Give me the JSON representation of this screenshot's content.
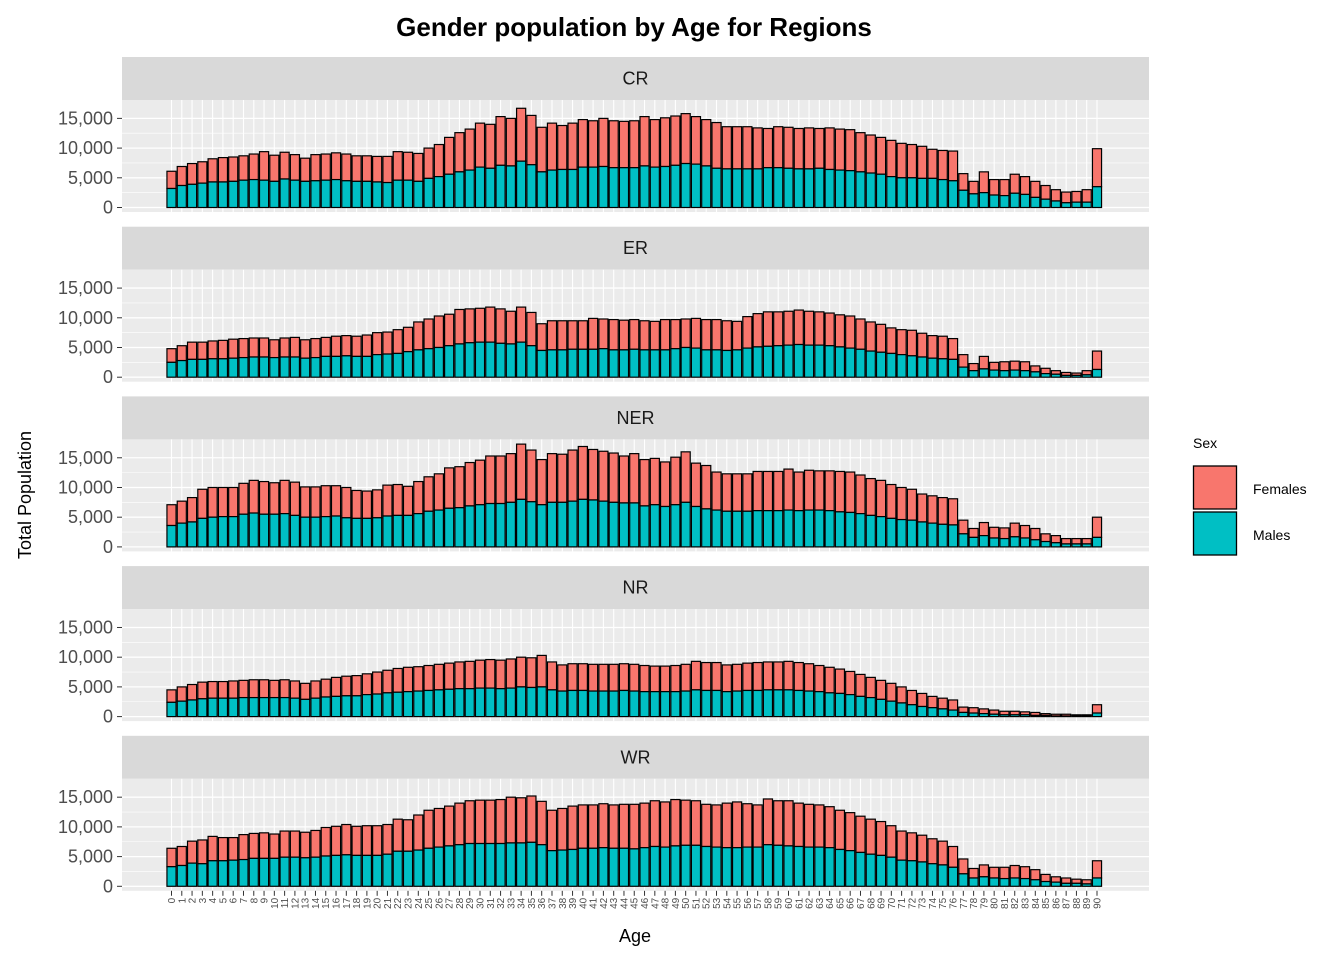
{
  "chart_data": {
    "type": "bar",
    "stacked": true,
    "title": "Gender population by Age for Regions",
    "xlabel": "Age",
    "ylabel": "Total Population",
    "ylim": [
      0,
      17000
    ],
    "yticks": [
      0,
      5000,
      10000,
      15000
    ],
    "ytick_labels": [
      "0",
      "5,000",
      "10,000",
      "15,000"
    ],
    "grid": true,
    "legend": {
      "title": "Sex",
      "placement": "right",
      "entries": [
        {
          "name": "Females",
          "color": "#F8766D"
        },
        {
          "name": "Males",
          "color": "#00BFC4"
        }
      ]
    },
    "categories": [
      "0",
      "1",
      "2",
      "3",
      "4",
      "5",
      "6",
      "7",
      "8",
      "9",
      "10",
      "11",
      "12",
      "13",
      "14",
      "15",
      "16",
      "17",
      "18",
      "19",
      "20",
      "21",
      "22",
      "23",
      "24",
      "25",
      "26",
      "27",
      "28",
      "29",
      "30",
      "31",
      "32",
      "33",
      "34",
      "35",
      "36",
      "37",
      "38",
      "39",
      "40",
      "41",
      "42",
      "43",
      "44",
      "45",
      "46",
      "47",
      "48",
      "49",
      "50",
      "51",
      "52",
      "53",
      "54",
      "55",
      "56",
      "57",
      "58",
      "59",
      "60",
      "61",
      "62",
      "63",
      "64",
      "65",
      "66",
      "67",
      "68",
      "69",
      "70",
      "71",
      "72",
      "73",
      "74",
      "75",
      "76",
      "77",
      "78",
      "79",
      "80",
      "81",
      "82",
      "83",
      "84",
      "85",
      "86",
      "87",
      "88",
      "89",
      "90"
    ],
    "facets": [
      {
        "region": "CR",
        "totals": [
          6100,
          6900,
          7400,
          7700,
          8200,
          8400,
          8500,
          8700,
          9000,
          9400,
          8800,
          9300,
          8900,
          8300,
          8900,
          9000,
          9200,
          9000,
          8700,
          8700,
          8600,
          8600,
          9400,
          9300,
          9100,
          10000,
          10600,
          11800,
          12600,
          13200,
          14200,
          14000,
          15300,
          15000,
          16700,
          15500,
          13500,
          14200,
          13800,
          14200,
          14800,
          14600,
          15000,
          14600,
          14500,
          14600,
          15300,
          14800,
          15100,
          15400,
          15800,
          15300,
          14800,
          14300,
          13600,
          13600,
          13600,
          13400,
          13300,
          13600,
          13500,
          13300,
          13400,
          13300,
          13400,
          13200,
          13100,
          12600,
          12200,
          11800,
          11300,
          10800,
          10600,
          10300,
          9800,
          9600,
          9500,
          5700,
          4400,
          6000,
          4700,
          4700,
          5600,
          5200,
          4400,
          3700,
          3000,
          2600,
          2700,
          3000,
          9900
        ],
        "males": [
          3200,
          3700,
          3900,
          4100,
          4300,
          4300,
          4400,
          4600,
          4700,
          4600,
          4400,
          4800,
          4600,
          4400,
          4500,
          4600,
          4700,
          4500,
          4400,
          4400,
          4300,
          4200,
          4600,
          4600,
          4400,
          4900,
          5200,
          5600,
          6000,
          6300,
          6800,
          6600,
          7100,
          7000,
          7800,
          7200,
          6000,
          6300,
          6400,
          6400,
          6800,
          6800,
          6900,
          6700,
          6700,
          6700,
          7000,
          6800,
          6900,
          7100,
          7400,
          7300,
          7000,
          6600,
          6500,
          6500,
          6500,
          6500,
          6700,
          6700,
          6600,
          6500,
          6500,
          6600,
          6400,
          6300,
          6200,
          6000,
          5800,
          5600,
          5200,
          5000,
          5000,
          4900,
          4900,
          4700,
          4500,
          2900,
          2300,
          2500,
          2100,
          2000,
          2400,
          2200,
          1700,
          1400,
          1100,
          800,
          900,
          900,
          3500
        ]
      },
      {
        "region": "ER",
        "totals": [
          4800,
          5300,
          5900,
          5900,
          6100,
          6200,
          6400,
          6500,
          6600,
          6600,
          6300,
          6600,
          6700,
          6300,
          6500,
          6700,
          6900,
          7000,
          6900,
          7100,
          7500,
          7600,
          8000,
          8400,
          9300,
          9800,
          10300,
          10600,
          11400,
          11500,
          11600,
          11800,
          11500,
          11100,
          11800,
          10900,
          9000,
          9500,
          9500,
          9500,
          9500,
          9900,
          9800,
          9700,
          9600,
          9700,
          9500,
          9400,
          9700,
          9700,
          9800,
          9900,
          9700,
          9700,
          9500,
          9400,
          10200,
          10700,
          11000,
          11000,
          11100,
          11300,
          11100,
          11000,
          10800,
          10500,
          10300,
          9800,
          9300,
          8900,
          8300,
          8000,
          7900,
          7400,
          7000,
          6900,
          6500,
          3800,
          2300,
          3500,
          2500,
          2600,
          2700,
          2600,
          1900,
          1500,
          1100,
          800,
          700,
          1100,
          4400
        ],
        "males": [
          2500,
          2800,
          3000,
          3000,
          3100,
          3100,
          3200,
          3300,
          3400,
          3400,
          3300,
          3400,
          3400,
          3200,
          3300,
          3500,
          3500,
          3600,
          3500,
          3500,
          3800,
          3900,
          4000,
          4300,
          4600,
          4800,
          5000,
          5300,
          5600,
          5800,
          5900,
          5900,
          5700,
          5600,
          5900,
          5300,
          4500,
          4600,
          4600,
          4700,
          4700,
          4700,
          4800,
          4600,
          4600,
          4700,
          4600,
          4600,
          4600,
          4800,
          5000,
          4900,
          4600,
          4600,
          4500,
          4600,
          4900,
          5100,
          5200,
          5300,
          5400,
          5500,
          5400,
          5400,
          5300,
          5100,
          4900,
          4700,
          4400,
          4200,
          4000,
          3800,
          3600,
          3400,
          3200,
          3100,
          3000,
          1700,
          1100,
          1400,
          1200,
          1100,
          1200,
          1100,
          900,
          600,
          500,
          300,
          300,
          400,
          1300
        ]
      },
      {
        "region": "NER",
        "totals": [
          7100,
          7700,
          8300,
          9700,
          10000,
          10000,
          10000,
          10700,
          11200,
          11000,
          10800,
          11200,
          10900,
          10100,
          10100,
          10300,
          10300,
          10000,
          9500,
          9400,
          9600,
          10400,
          10500,
          10200,
          11000,
          11800,
          12300,
          13300,
          13500,
          14200,
          14600,
          15300,
          15300,
          15700,
          17300,
          16300,
          14700,
          15700,
          15600,
          16300,
          16900,
          16400,
          16100,
          15800,
          15300,
          15700,
          14700,
          14900,
          14300,
          15100,
          16000,
          14100,
          13700,
          12600,
          12300,
          12300,
          12300,
          12700,
          12700,
          12700,
          13100,
          12600,
          12900,
          12800,
          12800,
          12700,
          12600,
          12100,
          11500,
          11200,
          10500,
          10000,
          9700,
          8900,
          8600,
          8300,
          8100,
          4500,
          3100,
          4100,
          3300,
          3200,
          4000,
          3600,
          3100,
          2200,
          1900,
          1400,
          1400,
          1400,
          5000
        ],
        "males": [
          3600,
          4000,
          4200,
          4800,
          5000,
          5100,
          5100,
          5500,
          5700,
          5500,
          5500,
          5600,
          5300,
          5000,
          5000,
          5100,
          5200,
          4900,
          4800,
          4800,
          4900,
          5200,
          5300,
          5300,
          5600,
          6000,
          6200,
          6500,
          6600,
          6900,
          7100,
          7300,
          7300,
          7500,
          8000,
          7600,
          7100,
          7500,
          7500,
          7700,
          8000,
          7900,
          7700,
          7500,
          7400,
          7400,
          6900,
          7100,
          6800,
          7100,
          7500,
          6800,
          6400,
          6200,
          6000,
          6000,
          6000,
          6100,
          6100,
          6100,
          6200,
          6100,
          6200,
          6200,
          6100,
          5900,
          5800,
          5600,
          5300,
          5100,
          4800,
          4600,
          4500,
          4200,
          4000,
          3800,
          3700,
          2200,
          1600,
          1900,
          1500,
          1400,
          1700,
          1500,
          1200,
          900,
          700,
          500,
          500,
          500,
          1600
        ]
      },
      {
        "region": "NR",
        "totals": [
          4500,
          5000,
          5400,
          5800,
          5900,
          5900,
          6000,
          6100,
          6200,
          6200,
          6100,
          6200,
          6000,
          5600,
          6000,
          6300,
          6600,
          6800,
          6900,
          7200,
          7500,
          7800,
          8100,
          8300,
          8400,
          8600,
          8800,
          9000,
          9200,
          9300,
          9500,
          9600,
          9500,
          9700,
          10000,
          9900,
          10300,
          9200,
          8700,
          8900,
          8900,
          8800,
          8800,
          8800,
          8900,
          8800,
          8600,
          8500,
          8500,
          8600,
          8800,
          9300,
          9100,
          9100,
          8700,
          8800,
          9000,
          9100,
          9200,
          9200,
          9300,
          9100,
          8900,
          8600,
          8300,
          8000,
          7600,
          7100,
          6600,
          6100,
          5600,
          5000,
          4400,
          3900,
          3400,
          3100,
          2800,
          1600,
          1500,
          1300,
          1100,
          900,
          900,
          800,
          700,
          500,
          400,
          400,
          300,
          300,
          2000
        ],
        "males": [
          2400,
          2600,
          2800,
          3000,
          3100,
          3100,
          3100,
          3200,
          3200,
          3200,
          3200,
          3200,
          3100,
          2900,
          3100,
          3300,
          3400,
          3500,
          3500,
          3700,
          3800,
          4000,
          4100,
          4200,
          4300,
          4400,
          4500,
          4600,
          4700,
          4700,
          4800,
          4800,
          4700,
          4800,
          5000,
          4900,
          5000,
          4500,
          4300,
          4400,
          4400,
          4300,
          4300,
          4300,
          4400,
          4300,
          4200,
          4200,
          4200,
          4200,
          4300,
          4500,
          4400,
          4400,
          4200,
          4300,
          4400,
          4400,
          4500,
          4500,
          4500,
          4400,
          4300,
          4200,
          4000,
          3900,
          3700,
          3400,
          3200,
          2900,
          2600,
          2300,
          2000,
          1700,
          1500,
          1300,
          1100,
          700,
          600,
          500,
          400,
          300,
          300,
          300,
          200,
          200,
          100,
          100,
          100,
          100,
          600
        ]
      },
      {
        "region": "WR",
        "totals": [
          6400,
          6700,
          7600,
          7800,
          8400,
          8200,
          8200,
          8700,
          8900,
          9000,
          8800,
          9300,
          9300,
          9100,
          9400,
          9900,
          10100,
          10400,
          10100,
          10200,
          10200,
          10400,
          11300,
          11200,
          12000,
          12800,
          13100,
          13500,
          14000,
          14400,
          14500,
          14500,
          14600,
          15000,
          14900,
          15200,
          14300,
          12800,
          13100,
          13500,
          13700,
          13700,
          13900,
          13700,
          13800,
          13800,
          14000,
          14400,
          14200,
          14600,
          14500,
          14400,
          13800,
          13700,
          14000,
          14200,
          13900,
          13700,
          14700,
          14400,
          14400,
          14000,
          13800,
          13700,
          13400,
          12800,
          12400,
          11800,
          11300,
          10900,
          10200,
          9300,
          9000,
          8600,
          8000,
          7600,
          6700,
          4600,
          3000,
          3600,
          3200,
          3200,
          3500,
          3300,
          2800,
          2000,
          1600,
          1400,
          1200,
          1100,
          4300
        ],
        "males": [
          3300,
          3500,
          3900,
          3800,
          4300,
          4300,
          4400,
          4500,
          4700,
          4700,
          4700,
          4900,
          4900,
          4800,
          4900,
          5100,
          5200,
          5300,
          5200,
          5200,
          5200,
          5400,
          5900,
          5900,
          6100,
          6400,
          6600,
          6800,
          7000,
          7200,
          7200,
          7200,
          7200,
          7300,
          7300,
          7400,
          7000,
          6000,
          6100,
          6200,
          6400,
          6400,
          6500,
          6400,
          6400,
          6300,
          6500,
          6700,
          6600,
          6800,
          6900,
          6900,
          6700,
          6600,
          6500,
          6500,
          6600,
          6600,
          7000,
          6900,
          6800,
          6700,
          6600,
          6600,
          6500,
          6200,
          6000,
          5700,
          5400,
          5200,
          4900,
          4400,
          4300,
          4100,
          3800,
          3600,
          3200,
          2100,
          1400,
          1600,
          1400,
          1300,
          1400,
          1300,
          1100,
          800,
          700,
          500,
          500,
          400,
          1400
        ]
      }
    ]
  }
}
